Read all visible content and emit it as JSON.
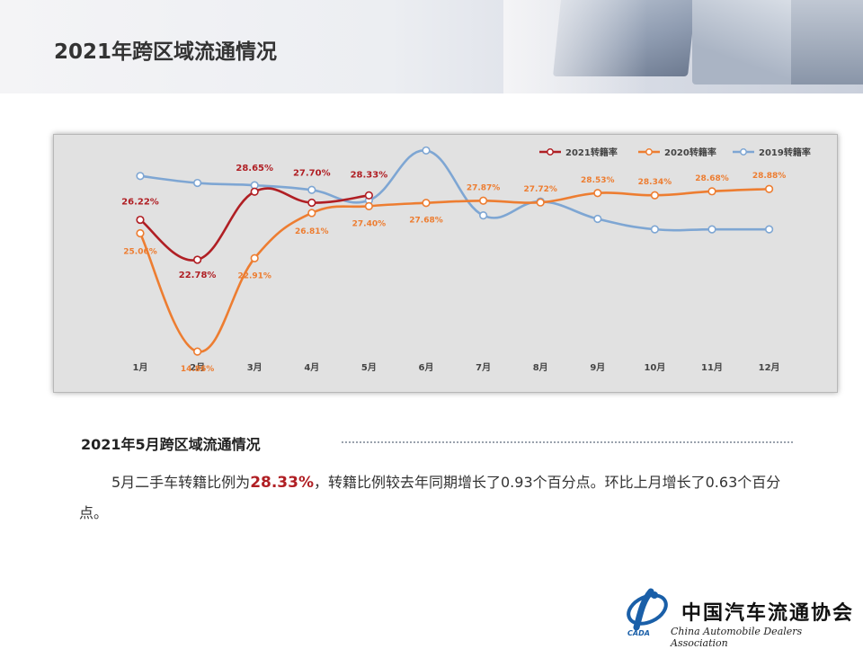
{
  "page": {
    "title": "2021年跨区域流通情况"
  },
  "section": {
    "heading": "2021年5月跨区域流通情况",
    "para_prefix": "5月二手车转籍比例为",
    "para_highlight": "28.33%",
    "para_suffix": "，转籍比例较去年同期增长了0.93个百分点。环比上月增长了0.63个百分点。"
  },
  "logo": {
    "cn": "中国汽车流通协会",
    "en": "China Automobile Dealers Association",
    "abbr": "CADA"
  },
  "chart_data": {
    "type": "line",
    "title": "",
    "xlabel": "",
    "ylabel": "",
    "ylim": [
      12,
      32
    ],
    "grid": false,
    "legend_position": "top-right",
    "categories": [
      "1月",
      "2月",
      "3月",
      "4月",
      "5月",
      "6月",
      "7月",
      "8月",
      "9月",
      "10月",
      "11月",
      "12月"
    ],
    "series": [
      {
        "name": "2021转籍率",
        "color": "#b01f24",
        "values": [
          26.22,
          22.78,
          28.65,
          27.7,
          28.33,
          null,
          null,
          null,
          null,
          null,
          null,
          null
        ],
        "labels": [
          "26.22%",
          "22.78%",
          "28.65%",
          "27.70%",
          "28.33%"
        ]
      },
      {
        "name": "2020转籍率",
        "color": "#ed7d31",
        "values": [
          25.06,
          14.86,
          22.91,
          26.81,
          27.4,
          27.68,
          27.87,
          27.72,
          28.53,
          28.34,
          28.68,
          28.88
        ],
        "labels": [
          "25.06%",
          "14.86%",
          "22.91%",
          "26.81%",
          "27.40%",
          "27.68%",
          "27.87%",
          "27.72%",
          "28.53%",
          "28.34%",
          "28.68%",
          "28.88%"
        ]
      },
      {
        "name": "2019转籍率",
        "color": "#7ea6d3",
        "values": [
          30.0,
          29.4,
          29.2,
          28.8,
          27.9,
          32.2,
          26.6,
          27.8,
          26.3,
          25.4,
          25.4,
          25.4
        ],
        "labels": []
      }
    ]
  }
}
